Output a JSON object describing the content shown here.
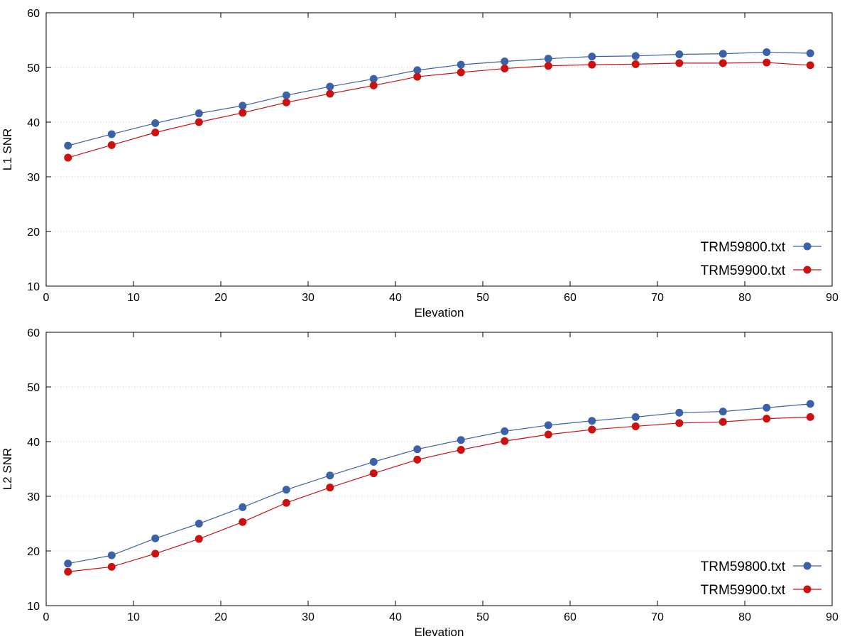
{
  "chart_data": [
    {
      "type": "line",
      "xlabel": "Elevation",
      "ylabel": "L1 SNR",
      "xlim": [
        0,
        90
      ],
      "ylim": [
        10,
        60
      ],
      "xticks": [
        0,
        10,
        20,
        30,
        40,
        50,
        60,
        70,
        80,
        90
      ],
      "yticks": [
        10,
        20,
        30,
        40,
        50,
        60
      ],
      "grid": "horizontal dotted",
      "legend": "bottom-right",
      "x": [
        2.5,
        7.5,
        12.5,
        17.5,
        22.5,
        27.5,
        32.5,
        37.5,
        42.5,
        47.5,
        52.5,
        57.5,
        62.5,
        67.5,
        72.5,
        77.5,
        82.5,
        87.5
      ],
      "series": [
        {
          "name": "TRM59800.txt",
          "color": "#3b62a8",
          "values": [
            35.7,
            37.8,
            39.8,
            41.6,
            43.0,
            44.9,
            46.5,
            47.9,
            49.5,
            50.5,
            51.1,
            51.6,
            52.0,
            52.1,
            52.4,
            52.5,
            52.8,
            52.6
          ]
        },
        {
          "name": "TRM59900.txt",
          "color": "#cc1111",
          "values": [
            33.5,
            35.8,
            38.1,
            40.0,
            41.7,
            43.6,
            45.2,
            46.7,
            48.3,
            49.1,
            49.8,
            50.3,
            50.5,
            50.6,
            50.8,
            50.8,
            50.9,
            50.4
          ]
        }
      ]
    },
    {
      "type": "line",
      "xlabel": "Elevation",
      "ylabel": "L2 SNR",
      "xlim": [
        0,
        90
      ],
      "ylim": [
        10,
        60
      ],
      "xticks": [
        0,
        10,
        20,
        30,
        40,
        50,
        60,
        70,
        80,
        90
      ],
      "yticks": [
        10,
        20,
        30,
        40,
        50,
        60
      ],
      "grid": "horizontal dotted",
      "legend": "bottom-right",
      "x": [
        2.5,
        7.5,
        12.5,
        17.5,
        22.5,
        27.5,
        32.5,
        37.5,
        42.5,
        47.5,
        52.5,
        57.5,
        62.5,
        67.5,
        72.5,
        77.5,
        82.5,
        87.5
      ],
      "series": [
        {
          "name": "TRM59800.txt",
          "color": "#3b62a8",
          "values": [
            17.7,
            19.2,
            22.3,
            25.0,
            28.0,
            31.2,
            33.8,
            36.3,
            38.6,
            40.3,
            41.9,
            43.0,
            43.8,
            44.5,
            45.3,
            45.5,
            46.2,
            46.9
          ]
        },
        {
          "name": "TRM59900.txt",
          "color": "#cc1111",
          "values": [
            16.2,
            17.1,
            19.5,
            22.2,
            25.3,
            28.8,
            31.6,
            34.2,
            36.7,
            38.5,
            40.1,
            41.3,
            42.2,
            42.8,
            43.4,
            43.6,
            44.2,
            44.5
          ]
        }
      ]
    }
  ]
}
